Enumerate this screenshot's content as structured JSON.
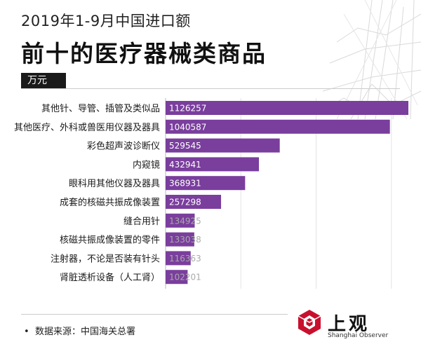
{
  "header": {
    "title_line1": "2019年1-9月中国进口额",
    "title_line2": "前十的医疗器械类商品",
    "unit": "万元"
  },
  "footer": {
    "source": "数据来源：中国海关总署",
    "logo_text": "上观",
    "logo_sub": "Shanghai Observer"
  },
  "colors": {
    "bar": "#7a3e9d",
    "label_dark_bg": "#ffffff",
    "label_light": "#aaaaaa",
    "logo_red": "#c8102e"
  },
  "chart_data": {
    "type": "bar",
    "orientation": "horizontal",
    "title": "前十的医疗器械类商品",
    "ylabel": "万元",
    "xlim": [
      0,
      1126257
    ],
    "grid": true,
    "categories": [
      "其他针、导管、插管及类似品",
      "其他医疗、外科或兽医用仪器及器具",
      "彩色超声波诊断仪",
      "内窥镜",
      "眼科用其他仪器及器具",
      "成套的核磁共振成像装置",
      "缝合用针",
      "核磁共振成像装置的零件",
      "注射器，不论是否装有针头",
      "肾脏透析设备（人工肾）"
    ],
    "values": [
      1126257,
      1040587,
      529545,
      432941,
      368931,
      257298,
      134925,
      133038,
      116363,
      102201
    ],
    "value_labels": [
      "1126257",
      "1040587",
      "529545",
      "432941",
      "368931",
      "257298",
      "134925",
      "133038",
      "116363",
      "102201"
    ]
  }
}
